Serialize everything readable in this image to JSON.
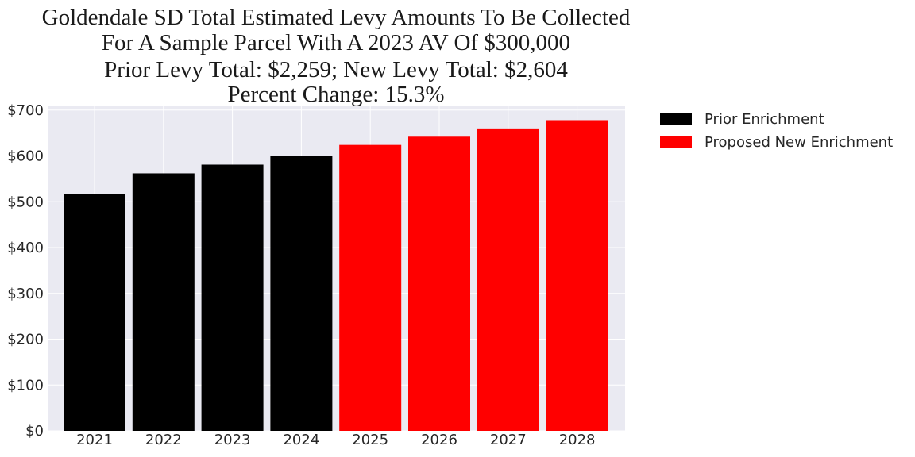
{
  "chart_data": {
    "type": "bar",
    "title": [
      "Goldendale SD Total Estimated Levy Amounts To Be Collected",
      "For A Sample Parcel With A 2023 AV Of $300,000",
      "Prior Levy Total:  $2,259; New Levy Total: $2,604",
      "Percent Change: 15.3%"
    ],
    "categories": [
      "2021",
      "2022",
      "2023",
      "2024",
      "2025",
      "2026",
      "2027",
      "2028"
    ],
    "values": [
      517,
      562,
      581,
      600,
      624,
      642,
      660,
      678
    ],
    "series_index": [
      0,
      0,
      0,
      0,
      1,
      1,
      1,
      1
    ],
    "series": [
      {
        "name": "Prior Enrichment",
        "color": "#000000"
      },
      {
        "name": "Proposed New Enrichment",
        "color": "#ff0000"
      }
    ],
    "y_ticks": [
      0,
      100,
      200,
      300,
      400,
      500,
      600,
      700
    ],
    "y_tick_labels": [
      "$0",
      "$100",
      "$200",
      "$300",
      "$400",
      "$500",
      "$600",
      "$700"
    ],
    "ylim": [
      0,
      710
    ],
    "xlabel": "",
    "ylabel": "",
    "grid": true,
    "legend_position": "outside-right"
  }
}
